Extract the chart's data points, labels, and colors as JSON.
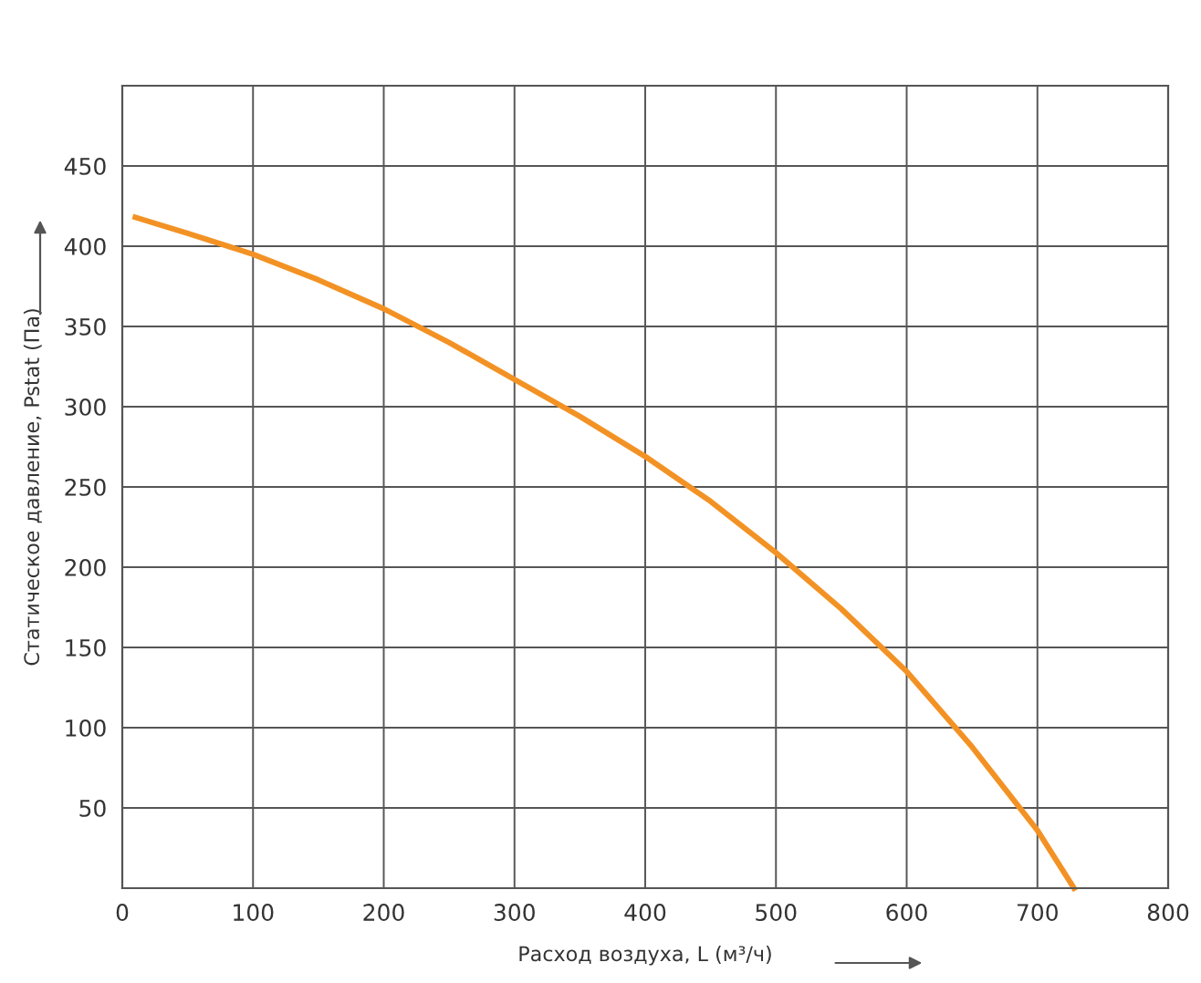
{
  "chart_data": {
    "type": "line",
    "xlabel": "Расход воздуха, L (м³/ч)",
    "ylabel": "Статическое давление, Pstat (Па)",
    "x": [
      10,
      50,
      100,
      150,
      200,
      250,
      300,
      350,
      400,
      450,
      500,
      550,
      600,
      650,
      700,
      728
    ],
    "series": [
      {
        "color": "#f39224",
        "values": [
          418,
          408,
          395,
          379,
          361,
          340,
          317,
          294,
          269,
          241,
          209,
          174,
          135,
          88,
          36,
          0
        ]
      }
    ],
    "xlim": [
      0,
      800
    ],
    "ylim": [
      0,
      500
    ],
    "xticks": [
      0,
      100,
      200,
      300,
      400,
      500,
      600,
      700,
      800
    ],
    "yticks": [
      50,
      100,
      150,
      200,
      250,
      300,
      350,
      400,
      450
    ],
    "grid": true,
    "legend": false,
    "marker": "none",
    "line_style": "solid"
  }
}
